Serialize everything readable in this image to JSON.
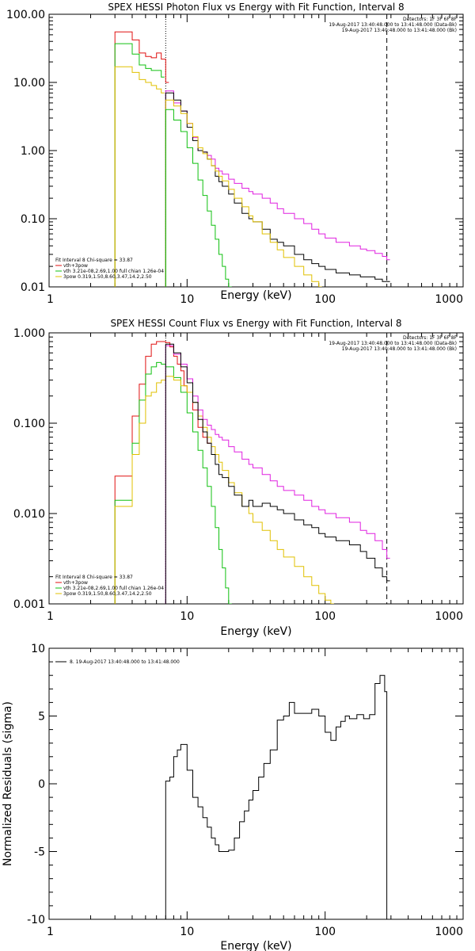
{
  "chart_data": [
    {
      "type": "line",
      "title": "SPEX HESSI Photon Flux vs Energy with Fit Function, Interval 8",
      "xlabel": "Energy (keV)",
      "ylabel": "",
      "xscale": "log",
      "yscale": "log",
      "xlim": [
        1,
        1000
      ],
      "ylim": [
        0.01,
        100
      ],
      "x_ticks": [
        "1",
        "10",
        "100",
        "1000"
      ],
      "y_ticks": [
        "0.01",
        "0.10",
        "1.00",
        "10.00",
        "100.00"
      ],
      "y_tick_values": [
        0.01,
        0.1,
        1,
        10,
        100
      ],
      "vlines": [
        {
          "x": 7.0,
          "style": "dotted",
          "color": "#000000"
        },
        {
          "x": 280,
          "style": "dashed",
          "color": "#000000"
        }
      ],
      "info_text": [
        "Detectors: 1F 3F 6F 8F",
        "19-Aug-2017 13:40:48.000 to 13:41:48.000 (Data-Bk)",
        "19-Aug-2017 13:40:48.000 to 13:41:48.000 (Bk)"
      ],
      "legend": [
        "Fit Interval  8    Chi-square = 33.87",
        "vth+3pow",
        "vth 3.21e-08,2.69,1.00  full chian 1.26e-04",
        "3pow 0.319,1.50,8.60,3.47,14.2,2.50"
      ],
      "legend_colors": [
        "#000000",
        "#e01010",
        "#10c010",
        "#e0c000"
      ],
      "series": [
        {
          "name": "vth+3pow",
          "color": "#e01010",
          "x": [
            3.0,
            3.5,
            4.0,
            4.5,
            5.0,
            5.5,
            6.0,
            6.5,
            7.0
          ],
          "y": [
            55,
            55,
            42,
            27,
            24,
            23,
            27,
            22,
            10
          ]
        },
        {
          "name": "",
          "color": "#10c010",
          "x": [
            3.0,
            3.5,
            4.0,
            4.5,
            5.0,
            5.5,
            6.0,
            6.5
          ],
          "y": [
            37,
            37,
            26,
            18,
            16,
            15,
            15,
            12
          ]
        },
        {
          "name": "",
          "color": "#e0c000",
          "x": [
            3.0,
            3.5,
            4.0,
            4.5,
            5.0,
            5.5,
            6.0,
            6.5
          ],
          "y": [
            17,
            17,
            14,
            11,
            10,
            9,
            8,
            7
          ]
        },
        {
          "name": "",
          "color": "#e020e0",
          "x": [
            7,
            8,
            9,
            10,
            11,
            12,
            13,
            14,
            15,
            16,
            17,
            18,
            20,
            22,
            25,
            28,
            30,
            35,
            40,
            45,
            50,
            60,
            70,
            80,
            90,
            100,
            120,
            150,
            180,
            200,
            230,
            260,
            280
          ],
          "y": [
            7.5,
            5.0,
            3.8,
            2.5,
            1.55,
            1.0,
            0.95,
            0.85,
            0.75,
            0.55,
            0.5,
            0.45,
            0.38,
            0.33,
            0.28,
            0.25,
            0.23,
            0.2,
            0.17,
            0.14,
            0.12,
            0.1,
            0.085,
            0.07,
            0.06,
            0.052,
            0.045,
            0.04,
            0.036,
            0.034,
            0.031,
            0.028,
            0.025
          ]
        },
        {
          "name": "",
          "color": "#000000",
          "x": [
            7,
            8,
            9,
            10,
            11,
            12,
            13,
            14,
            15,
            16,
            17,
            18,
            20,
            22,
            25,
            28,
            30,
            35,
            40,
            45,
            50,
            60,
            70,
            80,
            90,
            100,
            120,
            150,
            180,
            200,
            230,
            260,
            280
          ],
          "y": [
            7.0,
            5.5,
            3.8,
            2.2,
            1.4,
            1.0,
            0.95,
            0.75,
            0.6,
            0.42,
            0.35,
            0.3,
            0.23,
            0.17,
            0.12,
            0.1,
            0.09,
            0.07,
            0.05,
            0.045,
            0.04,
            0.03,
            0.025,
            0.022,
            0.02,
            0.018,
            0.016,
            0.015,
            0.014,
            0.014,
            0.013,
            0.012,
            0.012
          ]
        },
        {
          "name": "",
          "color": "#e0c000",
          "x": [
            7,
            8,
            9,
            10,
            11,
            12,
            13,
            14,
            15,
            16,
            17,
            18,
            20,
            22,
            25,
            28,
            30,
            35,
            40,
            45,
            50,
            60,
            70,
            80,
            90
          ],
          "y": [
            5.5,
            4.5,
            3.5,
            2.5,
            1.6,
            1.1,
            0.9,
            0.75,
            0.6,
            0.5,
            0.42,
            0.36,
            0.27,
            0.2,
            0.15,
            0.11,
            0.09,
            0.06,
            0.045,
            0.035,
            0.027,
            0.02,
            0.015,
            0.012,
            0.01
          ]
        },
        {
          "name": "",
          "color": "#10c010",
          "x": [
            7,
            8,
            9,
            10,
            11,
            12,
            13,
            14,
            15,
            16,
            17,
            18,
            19,
            20
          ],
          "y": [
            4.0,
            2.8,
            1.9,
            1.1,
            0.65,
            0.37,
            0.22,
            0.13,
            0.08,
            0.05,
            0.03,
            0.02,
            0.013,
            0.01
          ]
        }
      ]
    },
    {
      "type": "line",
      "title": "SPEX HESSI Count Flux vs Energy with Fit Function, Interval 8",
      "xlabel": "Energy (keV)",
      "ylabel": "",
      "xscale": "log",
      "yscale": "log",
      "xlim": [
        1,
        1000
      ],
      "ylim": [
        0.001,
        1
      ],
      "x_ticks": [
        "1",
        "10",
        "100",
        "1000"
      ],
      "y_ticks": [
        "0.001",
        "0.010",
        "0.100",
        "1.000"
      ],
      "y_tick_values": [
        0.001,
        0.01,
        0.1,
        1
      ],
      "vlines": [
        {
          "x": 7.0,
          "style": "dotted",
          "color": "#000000"
        },
        {
          "x": 280,
          "style": "dashed",
          "color": "#000000"
        }
      ],
      "info_text": [
        "Detectors: 1F 3F 6F 8F",
        "19-Aug-2017 13:40:48.000 to 13:41:48.000 (Data-Bk)",
        "19-Aug-2017 13:40:48.000 to 13:41:48.000 (Bk)"
      ],
      "legend": [
        "Fit Interval  8    Chi-square = 33.87",
        "vth+3pow",
        "vth 3.21e-08,2.69,1.00  full chian 1.26e-04",
        "3pow 0.319,1.50,8.60,3.47,14.2,2.50"
      ],
      "legend_colors": [
        "#000000",
        "#e01010",
        "#10c010",
        "#e0c000"
      ],
      "series": [
        {
          "name": "vth+3pow",
          "color": "#e01010",
          "x": [
            3.0,
            3.5,
            4.0,
            4.5,
            5.0,
            5.5,
            6.0,
            6.5,
            7.0,
            7.5,
            8,
            8.5,
            9,
            9.5,
            10,
            11,
            12,
            13,
            14
          ],
          "y": [
            0.026,
            0.026,
            0.12,
            0.27,
            0.55,
            0.75,
            0.8,
            0.8,
            0.78,
            0.7,
            0.55,
            0.45,
            0.38,
            0.26,
            0.22,
            0.14,
            0.09,
            0.07,
            0.06
          ]
        },
        {
          "name": "",
          "color": "#10c010",
          "x": [
            3.0,
            3.5,
            4.0,
            4.5,
            5.0,
            5.5,
            6.0,
            6.5,
            7,
            8,
            9,
            10,
            11,
            12,
            13,
            14,
            15,
            16,
            17,
            18,
            19,
            20
          ],
          "y": [
            0.014,
            0.014,
            0.06,
            0.18,
            0.35,
            0.42,
            0.47,
            0.45,
            0.42,
            0.32,
            0.22,
            0.13,
            0.08,
            0.05,
            0.032,
            0.02,
            0.012,
            0.007,
            0.004,
            0.0025,
            0.0015,
            0.001
          ]
        },
        {
          "name": "",
          "color": "#e0c000",
          "x": [
            3.0,
            3.5,
            4.0,
            4.5,
            5.0,
            5.5,
            6.0,
            6.5,
            7,
            8,
            9,
            10,
            11,
            12,
            13,
            14,
            15,
            16,
            17,
            18,
            20,
            22,
            25,
            28,
            30,
            35,
            40,
            45,
            50,
            60,
            70,
            80,
            90,
            100,
            110
          ],
          "y": [
            0.012,
            0.012,
            0.045,
            0.1,
            0.2,
            0.22,
            0.28,
            0.3,
            0.33,
            0.3,
            0.26,
            0.22,
            0.17,
            0.12,
            0.09,
            0.07,
            0.055,
            0.045,
            0.037,
            0.03,
            0.022,
            0.017,
            0.012,
            0.01,
            0.008,
            0.0065,
            0.005,
            0.004,
            0.0033,
            0.0026,
            0.002,
            0.0016,
            0.0013,
            0.0011,
            0.001
          ]
        },
        {
          "name": "",
          "color": "#e020e0",
          "x": [
            7,
            8,
            9,
            10,
            11,
            12,
            13,
            14,
            15,
            16,
            17,
            18,
            20,
            22,
            25,
            28,
            30,
            35,
            40,
            45,
            50,
            60,
            70,
            80,
            90,
            100,
            120,
            150,
            180,
            200,
            230,
            260,
            280
          ],
          "y": [
            0.72,
            0.58,
            0.45,
            0.31,
            0.2,
            0.14,
            0.11,
            0.095,
            0.085,
            0.075,
            0.07,
            0.065,
            0.055,
            0.048,
            0.04,
            0.035,
            0.032,
            0.027,
            0.023,
            0.02,
            0.018,
            0.016,
            0.014,
            0.012,
            0.011,
            0.01,
            0.009,
            0.008,
            0.0065,
            0.006,
            0.005,
            0.004,
            0.0032
          ]
        },
        {
          "name": "",
          "color": "#000000",
          "x": [
            7,
            8,
            9,
            10,
            11,
            12,
            13,
            14,
            15,
            16,
            17,
            18,
            20,
            22,
            25,
            28,
            30,
            35,
            40,
            45,
            50,
            60,
            70,
            80,
            90,
            100,
            120,
            150,
            180,
            200,
            230,
            260,
            280
          ],
          "y": [
            0.75,
            0.6,
            0.42,
            0.28,
            0.17,
            0.11,
            0.08,
            0.06,
            0.045,
            0.035,
            0.027,
            0.025,
            0.02,
            0.016,
            0.012,
            0.014,
            0.012,
            0.013,
            0.012,
            0.011,
            0.01,
            0.0085,
            0.0075,
            0.007,
            0.006,
            0.0055,
            0.005,
            0.0045,
            0.0038,
            0.0032,
            0.0025,
            0.002,
            0.0018
          ]
        }
      ]
    },
    {
      "type": "line",
      "title": "",
      "xlabel": "Energy (keV)",
      "ylabel": "Normalized Residuals (sigma)",
      "xscale": "log",
      "yscale": "linear",
      "xlim": [
        1,
        1000
      ],
      "ylim": [
        -10,
        10
      ],
      "x_ticks": [
        "1",
        "10",
        "100",
        "1000"
      ],
      "y_ticks": [
        "-10",
        "-5",
        "0",
        "5",
        "10"
      ],
      "y_tick_values": [
        -10,
        -5,
        0,
        5,
        10
      ],
      "legend": [
        "8. 19-Aug-2017 13:40:48.000 to 13:41:48.000"
      ],
      "legend_colors": [
        "#000000"
      ],
      "series": [
        {
          "name": "8. 19-Aug-2017 13:40:48.000 to 13:41:48.000",
          "color": "#000000",
          "x": [
            7,
            7.5,
            8,
            8.5,
            9,
            9.5,
            10,
            11,
            12,
            13,
            14,
            15,
            16,
            17,
            18,
            20,
            22,
            24,
            26,
            28,
            30,
            33,
            36,
            40,
            45,
            50,
            55,
            60,
            70,
            80,
            90,
            100,
            110,
            120,
            130,
            140,
            150,
            170,
            190,
            210,
            230,
            250,
            270,
            280
          ],
          "y": [
            0.2,
            0.5,
            2.0,
            2.5,
            2.9,
            2.9,
            1.0,
            -1.0,
            -1.7,
            -2.5,
            -3.2,
            -4.0,
            -4.5,
            -5.0,
            -5.0,
            -4.9,
            -4.0,
            -2.8,
            -2.0,
            -1.2,
            -0.5,
            0.5,
            1.5,
            2.5,
            4.7,
            5.0,
            6.0,
            5.2,
            5.2,
            5.5,
            5.0,
            3.8,
            3.2,
            4.2,
            4.6,
            5.0,
            4.8,
            5.1,
            4.8,
            5.1,
            7.4,
            8.0,
            6.8,
            -10
          ]
        }
      ]
    }
  ]
}
